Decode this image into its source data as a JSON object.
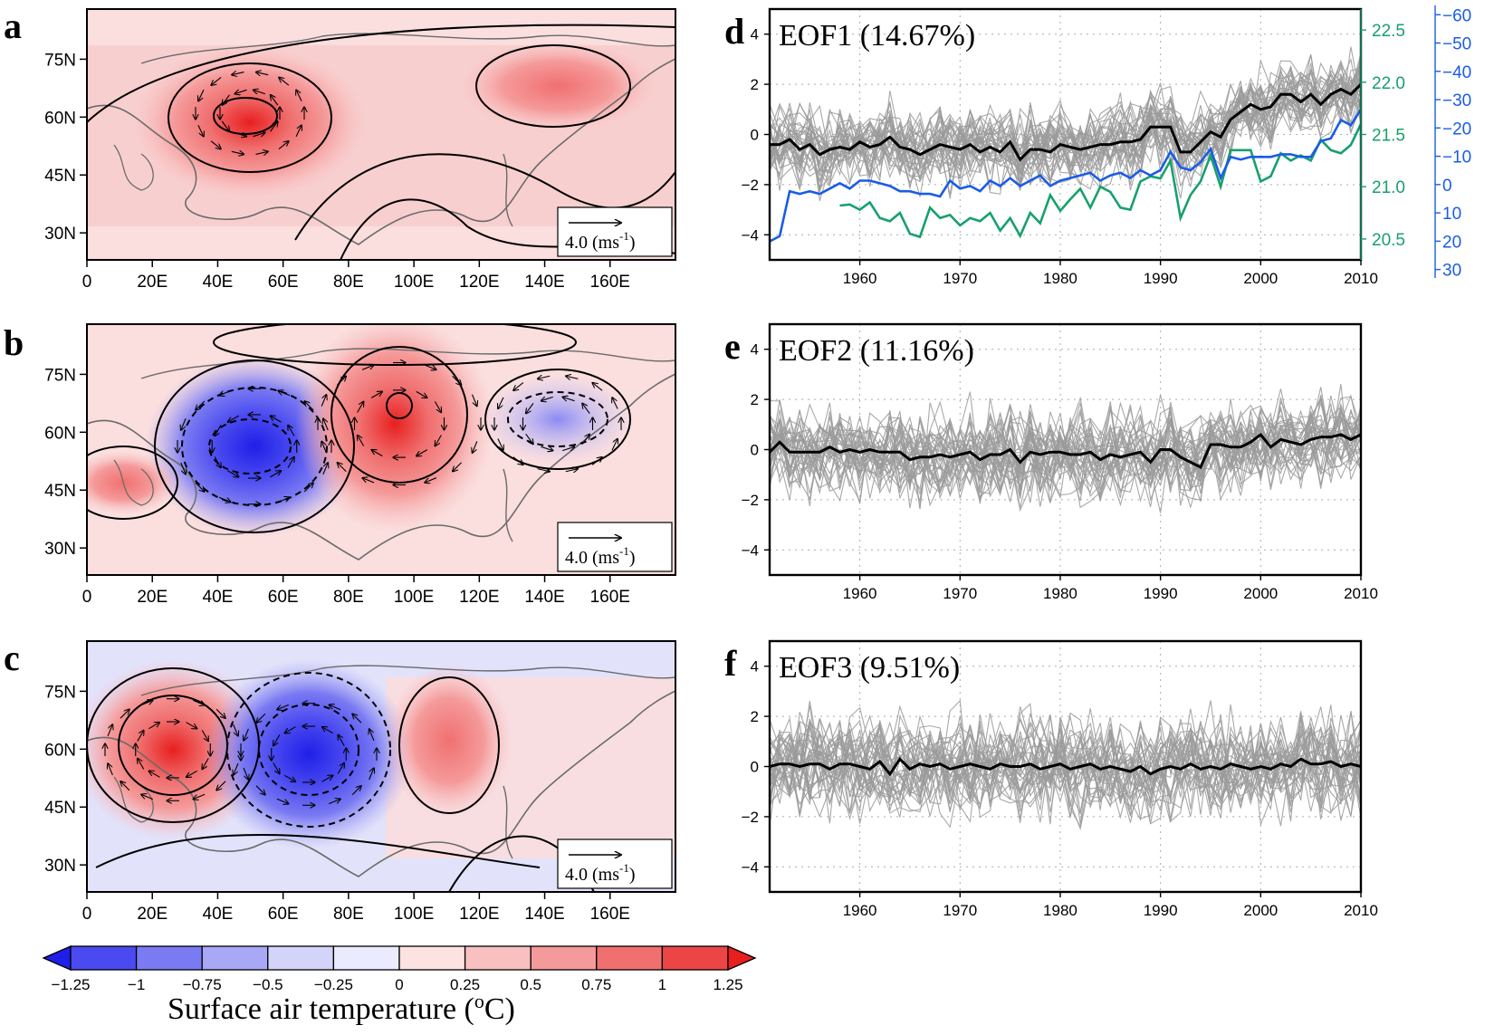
{
  "maps": [
    {
      "letter": "a",
      "pattern": "a",
      "lat_ticks": [
        "75N",
        "60N",
        "45N",
        "30N"
      ],
      "lon_ticks": [
        "0",
        "20E",
        "40E",
        "60E",
        "80E",
        "100E",
        "120E",
        "140E",
        "160E"
      ],
      "scale_label": "4.0 (ms",
      "scale_sup": "-1",
      ")": ""
    },
    {
      "letter": "b",
      "pattern": "b",
      "lat_ticks": [
        "75N",
        "60N",
        "45N",
        "30N"
      ],
      "lon_ticks": [
        "0",
        "20E",
        "40E",
        "60E",
        "80E",
        "100E",
        "120E",
        "140E",
        "160E"
      ],
      "scale_label": "4.0 (ms",
      "scale_sup": "-1"
    },
    {
      "letter": "c",
      "pattern": "c",
      "lat_ticks": [
        "75N",
        "60N",
        "45N",
        "30N"
      ],
      "lon_ticks": [
        "0",
        "20E",
        "40E",
        "60E",
        "80E",
        "100E",
        "120E",
        "140E",
        "160E"
      ],
      "scale_label": "4.0 (ms",
      "scale_sup": "-1"
    }
  ],
  "colorbar": {
    "ticks": [
      "−1.25",
      "−1",
      "−0.75",
      "−0.5",
      "−0.25",
      "0",
      "0.25",
      "0.5",
      "0.75",
      "1",
      "1.25"
    ],
    "colors": [
      "#1f1fe8",
      "#4a4af0",
      "#7a7af2",
      "#a8a8f6",
      "#d4d4fb",
      "#ebebff",
      "#fde2e2",
      "#f9c0c0",
      "#f59a9a",
      "#f07070",
      "#ec4545",
      "#e81f1f"
    ],
    "label": "Surface air temperature (",
    "label_sup": "o",
    "label_end": "C)"
  },
  "chart_data": [
    {
      "type": "line",
      "letter": "d",
      "title": "EOF1 (14.67%)",
      "xlim": [
        1951,
        2010
      ],
      "ylim": [
        -5,
        5
      ],
      "xticks": [
        "1960",
        "1970",
        "1980",
        "1990",
        "2000",
        "2010"
      ],
      "yticks": [
        "4",
        "2",
        "0",
        "−2",
        "−4"
      ],
      "series": [
        {
          "role": "ensemble",
          "color": "#9a9a9a",
          "count": 35,
          "spread": 0.9
        },
        {
          "role": "mean",
          "color": "#000000",
          "x": [
            1951,
            1952,
            1953,
            1954,
            1955,
            1956,
            1957,
            1958,
            1959,
            1960,
            1961,
            1962,
            1963,
            1964,
            1965,
            1966,
            1967,
            1968,
            1969,
            1970,
            1971,
            1972,
            1973,
            1974,
            1975,
            1976,
            1977,
            1978,
            1979,
            1980,
            1981,
            1982,
            1983,
            1984,
            1985,
            1986,
            1987,
            1988,
            1989,
            1990,
            1991,
            1992,
            1993,
            1994,
            1995,
            1996,
            1997,
            1998,
            1999,
            2000,
            2001,
            2002,
            2003,
            2004,
            2005,
            2006,
            2007,
            2008,
            2009,
            2010
          ],
          "values": [
            -0.4,
            -0.4,
            -0.2,
            -0.6,
            -0.4,
            -0.8,
            -0.6,
            -0.5,
            -0.6,
            -0.3,
            -0.5,
            -0.4,
            -0.1,
            -0.5,
            -0.6,
            -0.8,
            -0.6,
            -0.4,
            -0.5,
            -0.6,
            -0.4,
            -0.7,
            -0.5,
            -0.7,
            -0.3,
            -1.0,
            -0.6,
            -0.6,
            -0.7,
            -0.4,
            -0.5,
            -0.6,
            -0.5,
            -0.4,
            -0.4,
            -0.3,
            -0.3,
            -0.2,
            0.3,
            0.3,
            0.3,
            -0.7,
            -0.7,
            -0.3,
            0.1,
            -0.1,
            0.6,
            0.9,
            1.2,
            1.0,
            1.1,
            1.6,
            1.6,
            1.3,
            1.6,
            1.2,
            1.6,
            1.8,
            1.6,
            2.0
          ]
        },
        {
          "role": "right-axis-1",
          "color": "#18a06c",
          "axis": "green",
          "x": [
            1958,
            1959,
            1960,
            1961,
            1962,
            1963,
            1964,
            1965,
            1966,
            1967,
            1968,
            1969,
            1970,
            1971,
            1972,
            1973,
            1974,
            1975,
            1976,
            1977,
            1978,
            1979,
            1980,
            1981,
            1982,
            1983,
            1984,
            1985,
            1986,
            1987,
            1988,
            1989,
            1990,
            1991,
            1992,
            1993,
            1994,
            1995,
            1996,
            1997,
            1998,
            1999,
            2000,
            2001,
            2002,
            2003,
            2004,
            2005,
            2006,
            2007,
            2008,
            2009,
            2010
          ],
          "values": [
            20.82,
            20.83,
            20.78,
            20.85,
            20.7,
            20.67,
            20.75,
            20.55,
            20.52,
            20.8,
            20.7,
            20.73,
            20.63,
            20.7,
            20.67,
            20.75,
            20.58,
            20.7,
            20.53,
            20.75,
            20.65,
            20.92,
            20.77,
            20.88,
            20.98,
            20.8,
            21.0,
            20.95,
            20.8,
            20.78,
            21.05,
            21.1,
            21.08,
            21.25,
            20.7,
            20.92,
            21.05,
            21.3,
            21.0,
            21.35,
            21.35,
            21.35,
            21.05,
            21.1,
            21.32,
            21.25,
            21.3,
            21.25,
            21.45,
            21.35,
            21.32,
            21.4,
            21.6
          ]
        },
        {
          "role": "right-axis-2",
          "color": "#1a5ce6",
          "axis": "blue",
          "x": [
            1951,
            1952,
            1953,
            1954,
            1955,
            1956,
            1957,
            1958,
            1959,
            1960,
            1961,
            1962,
            1963,
            1964,
            1965,
            1966,
            1967,
            1968,
            1969,
            1970,
            1971,
            1972,
            1973,
            1974,
            1975,
            1976,
            1977,
            1978,
            1979,
            1980,
            1981,
            1982,
            1983,
            1984,
            1985,
            1986,
            1987,
            1988,
            1989,
            1990,
            1991,
            1992,
            1993,
            1994,
            1995,
            1996,
            1997,
            1998,
            1999,
            2000,
            2001,
            2002,
            2003,
            2004,
            2005,
            2006,
            2007,
            2008,
            2009,
            2010
          ],
          "values": [
            26,
            24,
            7,
            8,
            7,
            8,
            6,
            4,
            6,
            3,
            3,
            4,
            5,
            7,
            7,
            8,
            8,
            9,
            3,
            6,
            5,
            7,
            3,
            5,
            2,
            5,
            3,
            1,
            5,
            3,
            2,
            1,
            0,
            3,
            1,
            0,
            2,
            -1,
            1,
            -1,
            -8,
            -2,
            -1,
            -4,
            -9,
            2,
            -6,
            -5,
            -6,
            -6,
            -6,
            -7,
            -7,
            -6,
            -6,
            -12,
            -13,
            -20,
            -18,
            -24
          ]
        }
      ],
      "right_axis_green": {
        "ticks": [
          "22.5",
          "22.0",
          "21.5",
          "21.0",
          "20.5"
        ],
        "range": [
          20.3,
          22.7
        ]
      },
      "right_axis_blue": {
        "ticks": [
          "−60",
          "−50",
          "−40",
          "−30",
          "−20",
          "−10",
          "0",
          "10",
          "20",
          "30"
        ],
        "range": [
          -62,
          33
        ]
      }
    },
    {
      "type": "line",
      "letter": "e",
      "title": "EOF2 (11.16%)",
      "xlim": [
        1951,
        2010
      ],
      "ylim": [
        -5,
        5
      ],
      "xticks": [
        "1960",
        "1970",
        "1980",
        "1990",
        "2000",
        "2010"
      ],
      "yticks": [
        "4",
        "2",
        "0",
        "−2",
        "−4"
      ],
      "series": [
        {
          "role": "ensemble",
          "color": "#9a9a9a",
          "count": 35,
          "spread": 1.1
        },
        {
          "role": "mean",
          "color": "#000000",
          "x": [
            1951,
            1952,
            1953,
            1954,
            1955,
            1956,
            1957,
            1958,
            1959,
            1960,
            1961,
            1962,
            1963,
            1964,
            1965,
            1966,
            1967,
            1968,
            1969,
            1970,
            1971,
            1972,
            1973,
            1974,
            1975,
            1976,
            1977,
            1978,
            1979,
            1980,
            1981,
            1982,
            1983,
            1984,
            1985,
            1986,
            1987,
            1988,
            1989,
            1990,
            1991,
            1992,
            1993,
            1994,
            1995,
            1996,
            1997,
            1998,
            1999,
            2000,
            2001,
            2002,
            2003,
            2004,
            2005,
            2006,
            2007,
            2008,
            2009,
            2010
          ],
          "values": [
            -0.1,
            0.3,
            -0.1,
            -0.1,
            -0.1,
            -0.1,
            0.1,
            -0.1,
            0.0,
            -0.1,
            0.0,
            -0.1,
            -0.1,
            -0.1,
            -0.4,
            -0.3,
            -0.3,
            -0.2,
            -0.3,
            -0.2,
            -0.1,
            -0.4,
            -0.2,
            -0.2,
            0.0,
            -0.5,
            -0.1,
            -0.2,
            -0.1,
            -0.1,
            -0.2,
            -0.2,
            -0.1,
            -0.4,
            -0.2,
            -0.3,
            -0.2,
            -0.1,
            -0.5,
            0.0,
            0.0,
            -0.3,
            -0.5,
            -0.7,
            0.2,
            0.2,
            0.1,
            0.1,
            0.3,
            0.6,
            0.1,
            0.4,
            0.3,
            0.2,
            0.4,
            0.5,
            0.5,
            0.6,
            0.4,
            0.6
          ]
        }
      ]
    },
    {
      "type": "line",
      "letter": "f",
      "title": "EOF3 (9.51%)",
      "xlim": [
        1951,
        2010
      ],
      "ylim": [
        -5,
        5
      ],
      "xticks": [
        "1960",
        "1970",
        "1980",
        "1990",
        "2000",
        "2010"
      ],
      "yticks": [
        "4",
        "2",
        "0",
        "−2",
        "−4"
      ],
      "series": [
        {
          "role": "ensemble",
          "color": "#9a9a9a",
          "count": 35,
          "spread": 1.2
        },
        {
          "role": "mean",
          "color": "#000000",
          "x": [
            1951,
            1952,
            1953,
            1954,
            1955,
            1956,
            1957,
            1958,
            1959,
            1960,
            1961,
            1962,
            1963,
            1964,
            1965,
            1966,
            1967,
            1968,
            1969,
            1970,
            1971,
            1972,
            1973,
            1974,
            1975,
            1976,
            1977,
            1978,
            1979,
            1980,
            1981,
            1982,
            1983,
            1984,
            1985,
            1986,
            1987,
            1988,
            1989,
            1990,
            1991,
            1992,
            1993,
            1994,
            1995,
            1996,
            1997,
            1998,
            1999,
            2000,
            2001,
            2002,
            2003,
            2004,
            2005,
            2006,
            2007,
            2008,
            2009,
            2010
          ],
          "values": [
            0.0,
            0.1,
            0.1,
            0.0,
            0.1,
            0.1,
            -0.1,
            0.1,
            0.1,
            0.0,
            -0.1,
            0.2,
            -0.3,
            0.3,
            -0.1,
            0.1,
            0.0,
            0.1,
            -0.1,
            0.0,
            0.1,
            0.0,
            -0.1,
            0.1,
            0.0,
            0.0,
            0.1,
            -0.1,
            0.0,
            0.1,
            -0.1,
            0.0,
            0.1,
            -0.1,
            0.0,
            -0.1,
            -0.2,
            0.0,
            -0.3,
            -0.1,
            0.0,
            -0.1,
            0.1,
            -0.1,
            0.0,
            -0.1,
            0.1,
            0.0,
            -0.1,
            0.0,
            -0.1,
            0.1,
            0.0,
            0.3,
            0.1,
            0.1,
            0.2,
            0.0,
            0.1,
            0.0
          ]
        }
      ]
    }
  ]
}
